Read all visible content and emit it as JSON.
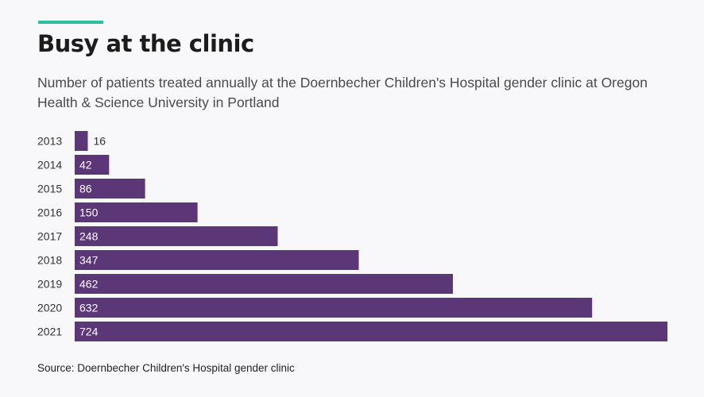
{
  "header": {
    "title": "Busy at the clinic",
    "subtitle": "Number of patients treated annually at the Doernbecher Children's Hospital gender clinic at Oregon Health & Science University in Portland"
  },
  "footer": {
    "source": "Source: Doernbecher Children's Hospital gender clinic"
  },
  "colors": {
    "bar": "#5c3778",
    "accent": "#2ac0a4",
    "label_inside": "#ffffff",
    "label_outside": "#333333"
  },
  "chart_data": {
    "type": "bar",
    "orientation": "horizontal",
    "categories": [
      "2013",
      "2014",
      "2015",
      "2016",
      "2017",
      "2018",
      "2019",
      "2020",
      "2021"
    ],
    "values": [
      16,
      42,
      86,
      150,
      248,
      347,
      462,
      632,
      724
    ],
    "title": "Busy at the clinic",
    "xlabel": "",
    "ylabel": "",
    "grid": false,
    "legend": "none",
    "data_labels": true
  }
}
